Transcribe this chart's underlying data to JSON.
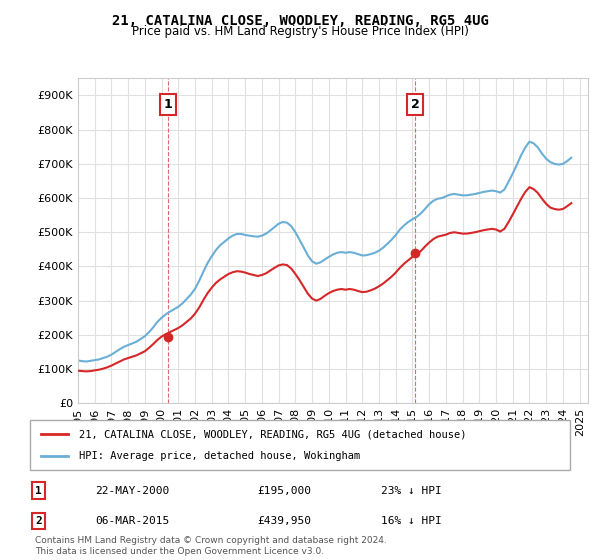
{
  "title": "21, CATALINA CLOSE, WOODLEY, READING, RG5 4UG",
  "subtitle": "Price paid vs. HM Land Registry's House Price Index (HPI)",
  "legend_line1": "21, CATALINA CLOSE, WOODLEY, READING, RG5 4UG (detached house)",
  "legend_line2": "HPI: Average price, detached house, Wokingham",
  "annotation1_label": "1",
  "annotation1_date": "22-MAY-2000",
  "annotation1_price": "£195,000",
  "annotation1_note": "23% ↓ HPI",
  "annotation1_year": 2000.38,
  "annotation1_value": 195000,
  "annotation2_label": "2",
  "annotation2_date": "06-MAR-2015",
  "annotation2_price": "£439,950",
  "annotation2_note": "16% ↓ HPI",
  "annotation2_year": 2015.17,
  "annotation2_value": 439950,
  "hpi_color": "#6baed6",
  "price_color": "#d62728",
  "vline_color": "#d62728",
  "background_color": "#ffffff",
  "grid_color": "#e0e0e0",
  "ylim": [
    0,
    950000
  ],
  "xlim_start": 1995,
  "xlim_end": 2025.5,
  "footer": "Contains HM Land Registry data © Crown copyright and database right 2024.\nThis data is licensed under the Open Government Licence v3.0.",
  "hpi_data": {
    "years": [
      1995.0,
      1995.25,
      1995.5,
      1995.75,
      1996.0,
      1996.25,
      1996.5,
      1996.75,
      1997.0,
      1997.25,
      1997.5,
      1997.75,
      1998.0,
      1998.25,
      1998.5,
      1998.75,
      1999.0,
      1999.25,
      1999.5,
      1999.75,
      2000.0,
      2000.25,
      2000.5,
      2000.75,
      2001.0,
      2001.25,
      2001.5,
      2001.75,
      2002.0,
      2002.25,
      2002.5,
      2002.75,
      2003.0,
      2003.25,
      2003.5,
      2003.75,
      2004.0,
      2004.25,
      2004.5,
      2004.75,
      2005.0,
      2005.25,
      2005.5,
      2005.75,
      2006.0,
      2006.25,
      2006.5,
      2006.75,
      2007.0,
      2007.25,
      2007.5,
      2007.75,
      2008.0,
      2008.25,
      2008.5,
      2008.75,
      2009.0,
      2009.25,
      2009.5,
      2009.75,
      2010.0,
      2010.25,
      2010.5,
      2010.75,
      2011.0,
      2011.25,
      2011.5,
      2011.75,
      2012.0,
      2012.25,
      2012.5,
      2012.75,
      2013.0,
      2013.25,
      2013.5,
      2013.75,
      2014.0,
      2014.25,
      2014.5,
      2014.75,
      2015.0,
      2015.25,
      2015.5,
      2015.75,
      2016.0,
      2016.25,
      2016.5,
      2016.75,
      2017.0,
      2017.25,
      2017.5,
      2017.75,
      2018.0,
      2018.25,
      2018.5,
      2018.75,
      2019.0,
      2019.25,
      2019.5,
      2019.75,
      2020.0,
      2020.25,
      2020.5,
      2020.75,
      2021.0,
      2021.25,
      2021.5,
      2021.75,
      2022.0,
      2022.25,
      2022.5,
      2022.75,
      2023.0,
      2023.25,
      2023.5,
      2023.75,
      2024.0,
      2024.25,
      2024.5
    ],
    "values": [
      125000,
      123000,
      122000,
      124000,
      126000,
      128000,
      132000,
      136000,
      142000,
      150000,
      158000,
      165000,
      170000,
      175000,
      180000,
      188000,
      196000,
      208000,
      222000,
      238000,
      250000,
      260000,
      268000,
      275000,
      282000,
      292000,
      305000,
      318000,
      335000,
      358000,
      385000,
      410000,
      430000,
      448000,
      462000,
      472000,
      482000,
      490000,
      495000,
      495000,
      492000,
      490000,
      488000,
      487000,
      490000,
      496000,
      505000,
      515000,
      525000,
      530000,
      528000,
      518000,
      500000,
      478000,
      455000,
      432000,
      415000,
      408000,
      412000,
      420000,
      428000,
      435000,
      440000,
      442000,
      440000,
      442000,
      440000,
      436000,
      432000,
      433000,
      436000,
      440000,
      446000,
      455000,
      466000,
      478000,
      492000,
      508000,
      520000,
      530000,
      538000,
      545000,
      555000,
      568000,
      582000,
      592000,
      598000,
      600000,
      605000,
      610000,
      612000,
      610000,
      608000,
      608000,
      610000,
      612000,
      615000,
      618000,
      620000,
      622000,
      620000,
      616000,
      625000,
      648000,
      672000,
      698000,
      725000,
      748000,
      765000,
      760000,
      748000,
      730000,
      715000,
      705000,
      700000,
      698000,
      700000,
      708000,
      718000
    ]
  },
  "price_data": {
    "years": [
      1995.0,
      1995.25,
      1995.5,
      1995.75,
      1996.0,
      1996.25,
      1996.5,
      1996.75,
      1997.0,
      1997.25,
      1997.5,
      1997.75,
      1998.0,
      1998.25,
      1998.5,
      1998.75,
      1999.0,
      1999.25,
      1999.5,
      1999.75,
      2000.0,
      2000.25,
      2000.5,
      2000.75,
      2001.0,
      2001.25,
      2001.5,
      2001.75,
      2002.0,
      2002.25,
      2002.5,
      2002.75,
      2003.0,
      2003.25,
      2003.5,
      2003.75,
      2004.0,
      2004.25,
      2004.5,
      2004.75,
      2005.0,
      2005.25,
      2005.5,
      2005.75,
      2006.0,
      2006.25,
      2006.5,
      2006.75,
      2007.0,
      2007.25,
      2007.5,
      2007.75,
      2008.0,
      2008.25,
      2008.5,
      2008.75,
      2009.0,
      2009.25,
      2009.5,
      2009.75,
      2010.0,
      2010.25,
      2010.5,
      2010.75,
      2011.0,
      2011.25,
      2011.5,
      2011.75,
      2012.0,
      2012.25,
      2012.5,
      2012.75,
      2013.0,
      2013.25,
      2013.5,
      2013.75,
      2014.0,
      2014.25,
      2014.5,
      2014.75,
      2015.0,
      2015.25,
      2015.5,
      2015.75,
      2016.0,
      2016.25,
      2016.5,
      2016.75,
      2017.0,
      2017.25,
      2017.5,
      2017.75,
      2018.0,
      2018.25,
      2018.5,
      2018.75,
      2019.0,
      2019.25,
      2019.5,
      2019.75,
      2020.0,
      2020.25,
      2020.5,
      2020.75,
      2021.0,
      2021.25,
      2021.5,
      2021.75,
      2022.0,
      2022.25,
      2022.5,
      2022.75,
      2023.0,
      2023.25,
      2023.5,
      2023.75,
      2024.0,
      2024.25,
      2024.5
    ],
    "values": [
      95000,
      94000,
      93000,
      94000,
      96000,
      98000,
      101000,
      105000,
      110000,
      116000,
      122000,
      128000,
      132000,
      136000,
      140000,
      146000,
      152000,
      162000,
      173000,
      185000,
      195000,
      202000,
      208000,
      214000,
      220000,
      228000,
      238000,
      248000,
      262000,
      280000,
      302000,
      322000,
      338000,
      352000,
      362000,
      370000,
      378000,
      383000,
      386000,
      385000,
      382000,
      378000,
      375000,
      372000,
      375000,
      380000,
      388000,
      396000,
      403000,
      406000,
      404000,
      394000,
      378000,
      360000,
      340000,
      320000,
      306000,
      300000,
      305000,
      314000,
      322000,
      328000,
      332000,
      334000,
      332000,
      334000,
      332000,
      328000,
      325000,
      326000,
      330000,
      335000,
      342000,
      350000,
      360000,
      370000,
      382000,
      396000,
      408000,
      418000,
      428000,
      436000,
      445000,
      458000,
      470000,
      480000,
      487000,
      490000,
      493000,
      498000,
      500000,
      498000,
      496000,
      496000,
      498000,
      500000,
      503000,
      506000,
      508000,
      510000,
      508000,
      502000,
      510000,
      530000,
      552000,
      575000,
      598000,
      618000,
      632000,
      626000,
      615000,
      598000,
      583000,
      572000,
      568000,
      566000,
      568000,
      576000,
      585000
    ]
  }
}
